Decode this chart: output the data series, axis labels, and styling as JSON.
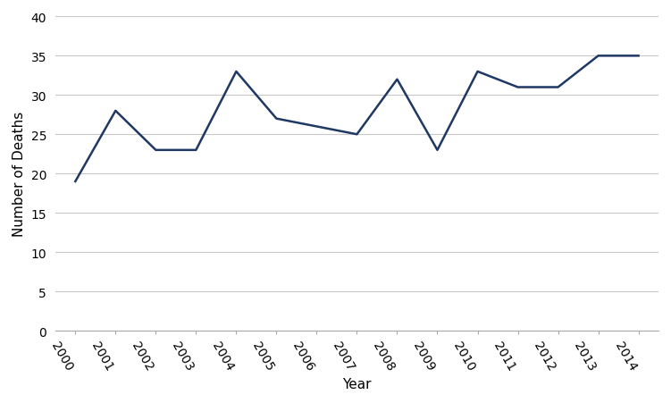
{
  "years": [
    2000,
    2001,
    2002,
    2003,
    2004,
    2005,
    2006,
    2007,
    2008,
    2009,
    2010,
    2011,
    2012,
    2013,
    2014
  ],
  "deaths": [
    19,
    28,
    23,
    23,
    33,
    27,
    26,
    25,
    32,
    23,
    33,
    31,
    31,
    35,
    35
  ],
  "line_color": "#1F3864",
  "line_width": 1.8,
  "xlabel": "Year",
  "ylabel": "Number of Deaths",
  "ylim": [
    0,
    40
  ],
  "yticks": [
    0,
    5,
    10,
    15,
    20,
    25,
    30,
    35,
    40
  ],
  "xlim": [
    1999.5,
    2014.5
  ],
  "background_color": "#ffffff",
  "grid_color": "#c8c8c8",
  "xlabel_fontsize": 11,
  "ylabel_fontsize": 11,
  "tick_fontsize": 10,
  "label_rotation": -60
}
